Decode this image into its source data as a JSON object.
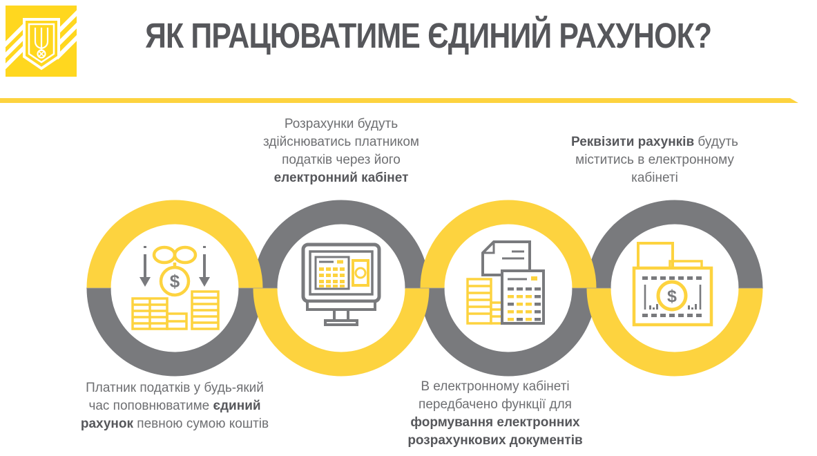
{
  "colors": {
    "yellow": "#FDD33F",
    "logoyellow": "#FFD71F",
    "gray": "#797A7D",
    "dark": "#56575B",
    "text": "#6E6F72"
  },
  "header": {
    "title": "ЯК ПРАЦЮВАТИМЕ ЄДИНИЙ РАХУНОК?",
    "logo": "state-fiscal-service-trident-emblem"
  },
  "steps": [
    {
      "name": "step-1-topup",
      "icon": "coins-deposit-arrows-icon",
      "ring_top": "yellow",
      "ring_bottom": "gray",
      "caption_position": "below",
      "caption_lines": [
        [
          {
            "t": "Платник податків у будь-який",
            "b": false
          }
        ],
        [
          {
            "t": "час поповнюватиме ",
            "b": false
          },
          {
            "t": "єдиний",
            "b": true
          }
        ],
        [
          {
            "t": "рахунок",
            "b": true
          },
          {
            "t": " певною сумою коштів",
            "b": false
          }
        ]
      ]
    },
    {
      "name": "step-2-electronic-cabinet",
      "icon": "monitor-calculator-money-icon",
      "ring_top": "gray",
      "ring_bottom": "yellow",
      "caption_position": "above",
      "caption_lines": [
        [
          {
            "t": "Розрахунки будуть",
            "b": false
          }
        ],
        [
          {
            "t": "здійснюватись платником",
            "b": false
          }
        ],
        [
          {
            "t": "податків через його",
            "b": false
          }
        ],
        [
          {
            "t": "електронний кабінет",
            "b": true
          }
        ]
      ]
    },
    {
      "name": "step-3-settlement-documents",
      "icon": "document-calculator-coins-icon",
      "ring_top": "yellow",
      "ring_bottom": "gray",
      "caption_position": "below",
      "caption_lines": [
        [
          {
            "t": "В електронному кабінеті",
            "b": false
          }
        ],
        [
          {
            "t": "передбачено функції для",
            "b": false
          }
        ],
        [
          {
            "t": "формування електронних",
            "b": true
          }
        ],
        [
          {
            "t": "розрахункових документів",
            "b": true
          }
        ]
      ]
    },
    {
      "name": "step-4-account-requisites",
      "icon": "folder-dollar-coin-icon",
      "ring_top": "gray",
      "ring_bottom": "yellow",
      "caption_position": "above",
      "caption_lines": [
        [
          {
            "t": "Реквізити рахунків",
            "b": true
          },
          {
            "t": " будуть",
            "b": false
          }
        ],
        [
          {
            "t": "міститись в електронному",
            "b": false
          }
        ],
        [
          {
            "t": "кабінеті",
            "b": false
          }
        ]
      ]
    }
  ]
}
